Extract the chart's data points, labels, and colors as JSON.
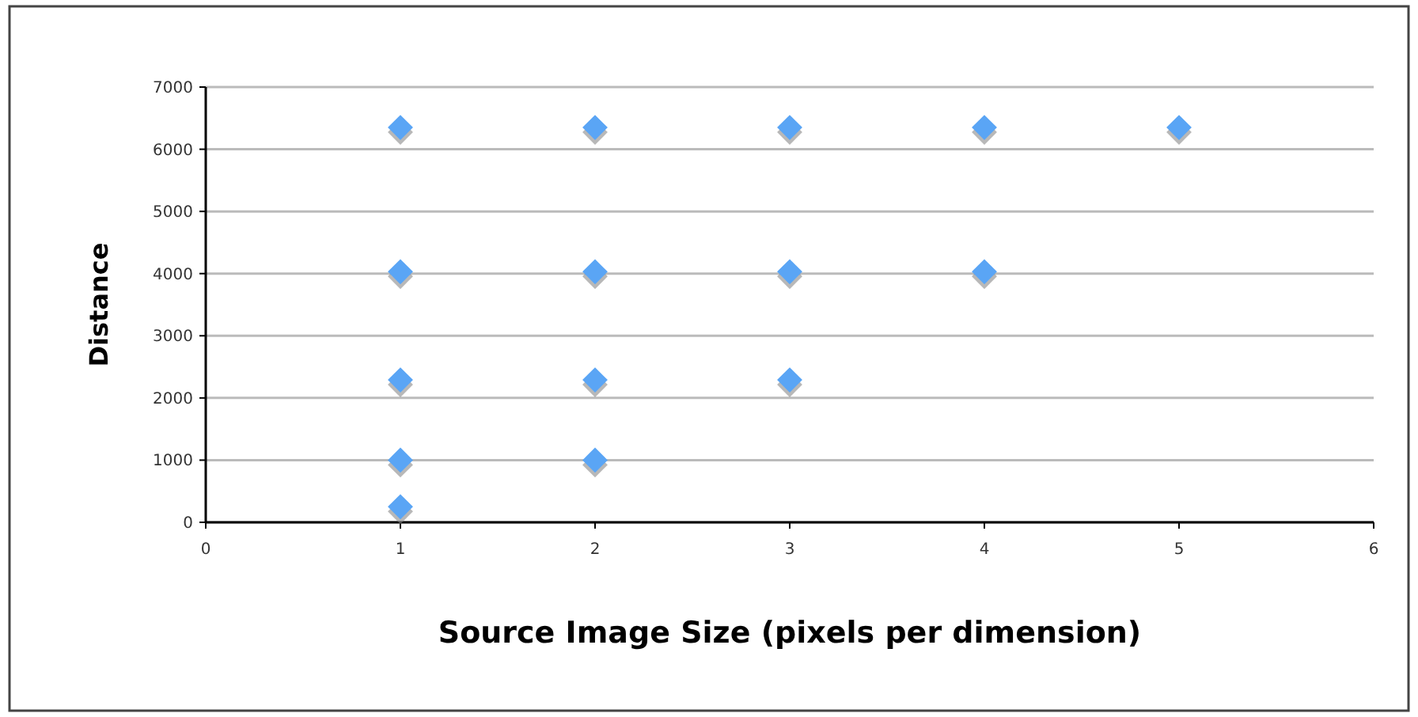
{
  "chart_data": {
    "type": "scatter",
    "xlabel": "Source Image Size (pixels per dimension)",
    "ylabel": "Distance",
    "x": [
      1,
      1,
      1,
      1,
      1,
      2,
      2,
      2,
      2,
      3,
      3,
      3,
      4,
      4,
      5
    ],
    "values": [
      6350,
      4030,
      2290,
      1000,
      250,
      6350,
      4030,
      2290,
      1000,
      6350,
      4030,
      2290,
      6350,
      4030,
      6350
    ],
    "color": "#5aa5f5",
    "marker": "diamond",
    "xlim": [
      0,
      6
    ],
    "xticks": [
      0,
      1,
      2,
      3,
      4,
      5,
      6
    ],
    "ylim": [
      0,
      7000
    ],
    "yticks": [
      0,
      1000,
      2000,
      3000,
      4000,
      5000,
      6000,
      7000
    ],
    "grid": "y"
  }
}
